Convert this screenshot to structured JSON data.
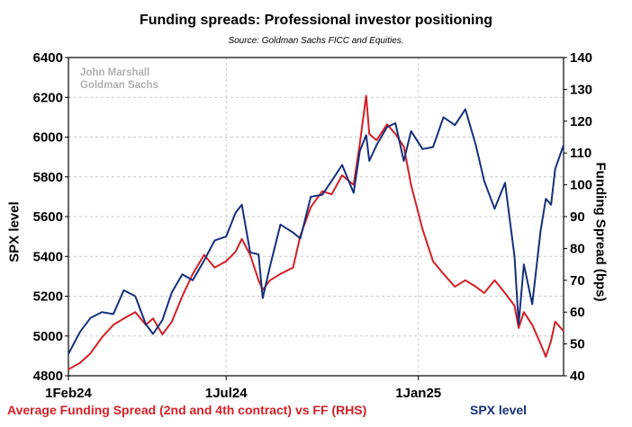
{
  "chart_data": {
    "type": "line",
    "title": "Funding spreads: Professional investor positioning",
    "subtitle": "Source: Goldman Sachs FICC and Equities.",
    "ylabel_left": "SPX level",
    "ylabel_right": "Funding Spread (bps)",
    "annotation": [
      "John Marshall",
      "Goldman Sachs"
    ],
    "x_range": [
      "2024-02-01",
      "2025-05-20"
    ],
    "x_ticks": [
      {
        "date": "2024-02-01",
        "label": "1Feb24"
      },
      {
        "date": "2024-07-01",
        "label": "1Jul24"
      },
      {
        "date": "2025-01-01",
        "label": "1Jan25"
      }
    ],
    "ylim_left": [
      4800,
      6400
    ],
    "yticks_left": [
      4800,
      5000,
      5200,
      5400,
      5600,
      5800,
      6000,
      6200,
      6400
    ],
    "ylim_right": [
      40,
      140
    ],
    "yticks_right": [
      40,
      50,
      60,
      70,
      80,
      90,
      100,
      110,
      120,
      130,
      140
    ],
    "grid": true,
    "series": [
      {
        "name": "Average Funding Spread (2nd and 4th contract) vs FF (RHS)",
        "axis": "right",
        "color": "#d31f26",
        "points": [
          [
            "2024-02-01",
            42
          ],
          [
            "2024-02-12",
            44
          ],
          [
            "2024-02-22",
            47
          ],
          [
            "2024-03-04",
            52
          ],
          [
            "2024-03-15",
            56
          ],
          [
            "2024-03-25",
            58
          ],
          [
            "2024-04-05",
            60
          ],
          [
            "2024-04-15",
            56
          ],
          [
            "2024-04-22",
            58
          ],
          [
            "2024-05-01",
            53
          ],
          [
            "2024-05-10",
            57
          ],
          [
            "2024-05-20",
            65
          ],
          [
            "2024-05-30",
            72
          ],
          [
            "2024-06-10",
            78
          ],
          [
            "2024-06-20",
            74
          ],
          [
            "2024-07-01",
            76
          ],
          [
            "2024-07-10",
            79
          ],
          [
            "2024-07-16",
            83
          ],
          [
            "2024-07-24",
            78
          ],
          [
            "2024-08-01",
            70
          ],
          [
            "2024-08-05",
            67
          ],
          [
            "2024-08-12",
            70
          ],
          [
            "2024-08-22",
            72
          ],
          [
            "2024-09-03",
            74
          ],
          [
            "2024-09-10",
            84
          ],
          [
            "2024-09-20",
            93
          ],
          [
            "2024-10-01",
            98
          ],
          [
            "2024-10-10",
            97
          ],
          [
            "2024-10-20",
            103
          ],
          [
            "2024-10-31",
            100
          ],
          [
            "2024-11-06",
            113
          ],
          [
            "2024-11-12",
            128
          ],
          [
            "2024-11-15",
            116
          ],
          [
            "2024-11-22",
            114
          ],
          [
            "2024-12-02",
            119
          ],
          [
            "2024-12-10",
            116
          ],
          [
            "2024-12-18",
            112
          ],
          [
            "2024-12-25",
            100
          ],
          [
            "2025-01-05",
            86
          ],
          [
            "2025-01-15",
            76
          ],
          [
            "2025-01-25",
            72
          ],
          [
            "2025-02-05",
            68
          ],
          [
            "2025-02-15",
            70
          ],
          [
            "2025-02-25",
            68
          ],
          [
            "2025-03-05",
            66
          ],
          [
            "2025-03-15",
            70
          ],
          [
            "2025-03-25",
            66
          ],
          [
            "2025-04-03",
            62
          ],
          [
            "2025-04-07",
            55
          ],
          [
            "2025-04-12",
            60
          ],
          [
            "2025-04-20",
            56
          ],
          [
            "2025-04-28",
            50
          ],
          [
            "2025-05-03",
            46
          ],
          [
            "2025-05-08",
            51
          ],
          [
            "2025-05-12",
            57
          ],
          [
            "2025-05-20",
            54
          ]
        ]
      },
      {
        "name": "SPX level",
        "axis": "left",
        "color": "#16307a",
        "points": [
          [
            "2024-02-01",
            4910
          ],
          [
            "2024-02-12",
            5020
          ],
          [
            "2024-02-22",
            5090
          ],
          [
            "2024-03-04",
            5120
          ],
          [
            "2024-03-15",
            5110
          ],
          [
            "2024-03-25",
            5230
          ],
          [
            "2024-04-05",
            5200
          ],
          [
            "2024-04-15",
            5060
          ],
          [
            "2024-04-22",
            5010
          ],
          [
            "2024-05-01",
            5080
          ],
          [
            "2024-05-10",
            5220
          ],
          [
            "2024-05-20",
            5310
          ],
          [
            "2024-05-30",
            5280
          ],
          [
            "2024-06-10",
            5380
          ],
          [
            "2024-06-20",
            5480
          ],
          [
            "2024-07-01",
            5500
          ],
          [
            "2024-07-10",
            5620
          ],
          [
            "2024-07-16",
            5660
          ],
          [
            "2024-07-24",
            5420
          ],
          [
            "2024-08-01",
            5410
          ],
          [
            "2024-08-05",
            5190
          ],
          [
            "2024-08-12",
            5350
          ],
          [
            "2024-08-22",
            5560
          ],
          [
            "2024-09-03",
            5520
          ],
          [
            "2024-09-10",
            5490
          ],
          [
            "2024-09-20",
            5700
          ],
          [
            "2024-10-01",
            5710
          ],
          [
            "2024-10-10",
            5780
          ],
          [
            "2024-10-20",
            5860
          ],
          [
            "2024-10-31",
            5720
          ],
          [
            "2024-11-06",
            5930
          ],
          [
            "2024-11-12",
            6010
          ],
          [
            "2024-11-15",
            5880
          ],
          [
            "2024-11-22",
            5960
          ],
          [
            "2024-12-02",
            6050
          ],
          [
            "2024-12-10",
            6070
          ],
          [
            "2024-12-18",
            5880
          ],
          [
            "2024-12-25",
            6030
          ],
          [
            "2025-01-05",
            5940
          ],
          [
            "2025-01-15",
            5950
          ],
          [
            "2025-01-25",
            6100
          ],
          [
            "2025-02-05",
            6060
          ],
          [
            "2025-02-15",
            6140
          ],
          [
            "2025-02-25",
            5960
          ],
          [
            "2025-03-05",
            5780
          ],
          [
            "2025-03-15",
            5640
          ],
          [
            "2025-03-25",
            5770
          ],
          [
            "2025-04-03",
            5400
          ],
          [
            "2025-04-07",
            5060
          ],
          [
            "2025-04-12",
            5360
          ],
          [
            "2025-04-20",
            5160
          ],
          [
            "2025-04-28",
            5530
          ],
          [
            "2025-05-03",
            5690
          ],
          [
            "2025-05-08",
            5660
          ],
          [
            "2025-05-12",
            5840
          ],
          [
            "2025-05-20",
            5960
          ]
        ]
      }
    ]
  }
}
